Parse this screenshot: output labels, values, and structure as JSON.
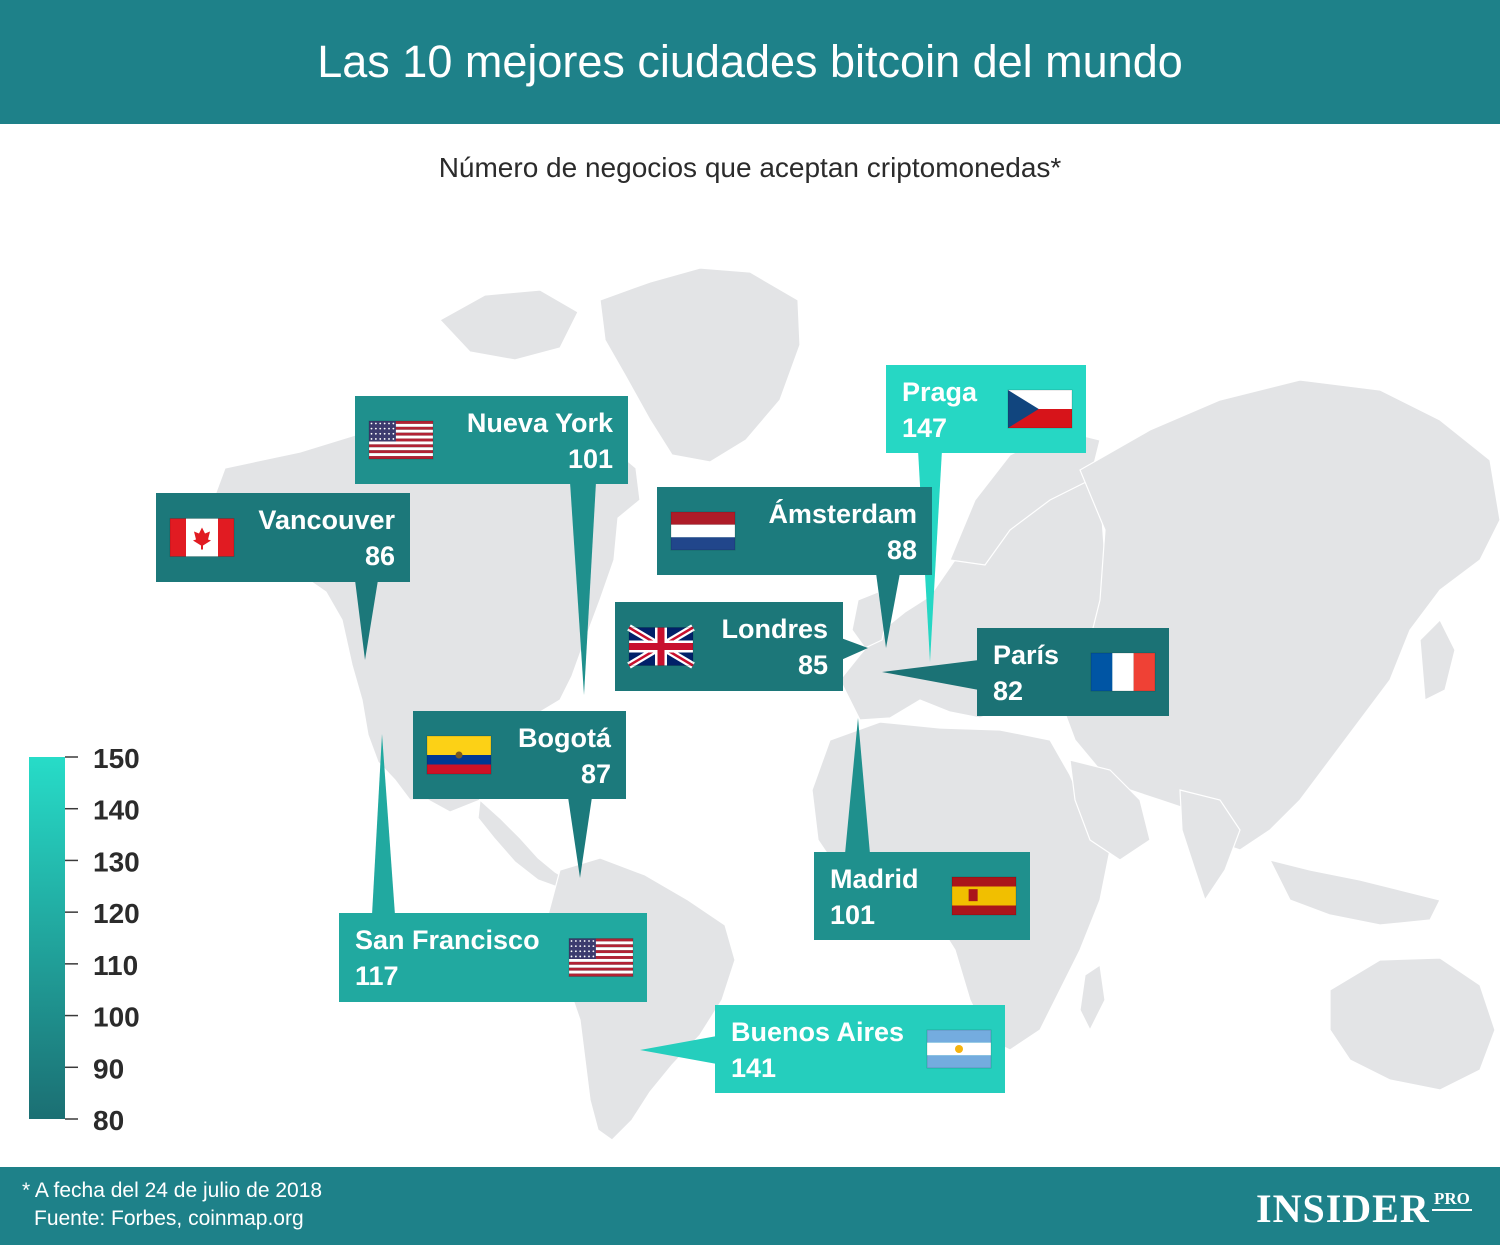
{
  "title": "Las 10 mejores ciudades bitcoin del mundo",
  "subtitle": "Número de negocios que aceptan criptomonedas*",
  "footer": {
    "note": "* A fecha del 24 de julio de 2018",
    "source": "Fuente: Forbes, coinmap.org",
    "logo": "INSIDER",
    "logo_suffix": "PRO"
  },
  "colors": {
    "header_bg": "#1e8189",
    "scale_low": "#1b6f73",
    "scale_high": "#27dcc8",
    "map_land": "#e3e4e6"
  },
  "chart_data": {
    "type": "map",
    "title": "Las 10 mejores ciudades bitcoin del mundo",
    "value_label": "Número de negocios que aceptan criptomonedas*",
    "color_scale": {
      "min": 80,
      "max": 150,
      "ticks": [
        "150",
        "140",
        "130",
        "120",
        "110",
        "100",
        "90",
        "80"
      ]
    },
    "cities": [
      {
        "name": "Praga",
        "value": 147,
        "flag": "czech-flag"
      },
      {
        "name": "Nueva York",
        "value": 101,
        "flag": "usa-flag"
      },
      {
        "name": "Vancouver",
        "value": 86,
        "flag": "canada-flag"
      },
      {
        "name": "Ámsterdam",
        "value": 88,
        "flag": "netherlands-flag"
      },
      {
        "name": "Londres",
        "value": 85,
        "flag": "uk-flag"
      },
      {
        "name": "París",
        "value": 82,
        "flag": "france-flag"
      },
      {
        "name": "Bogotá",
        "value": 87,
        "flag": "colombia-flag"
      },
      {
        "name": "Madrid",
        "value": 101,
        "flag": "spain-flag"
      },
      {
        "name": "San Francisco",
        "value": 117,
        "flag": "usa-flag"
      },
      {
        "name": "Buenos Aires",
        "value": 141,
        "flag": "argentina-flag"
      }
    ]
  }
}
